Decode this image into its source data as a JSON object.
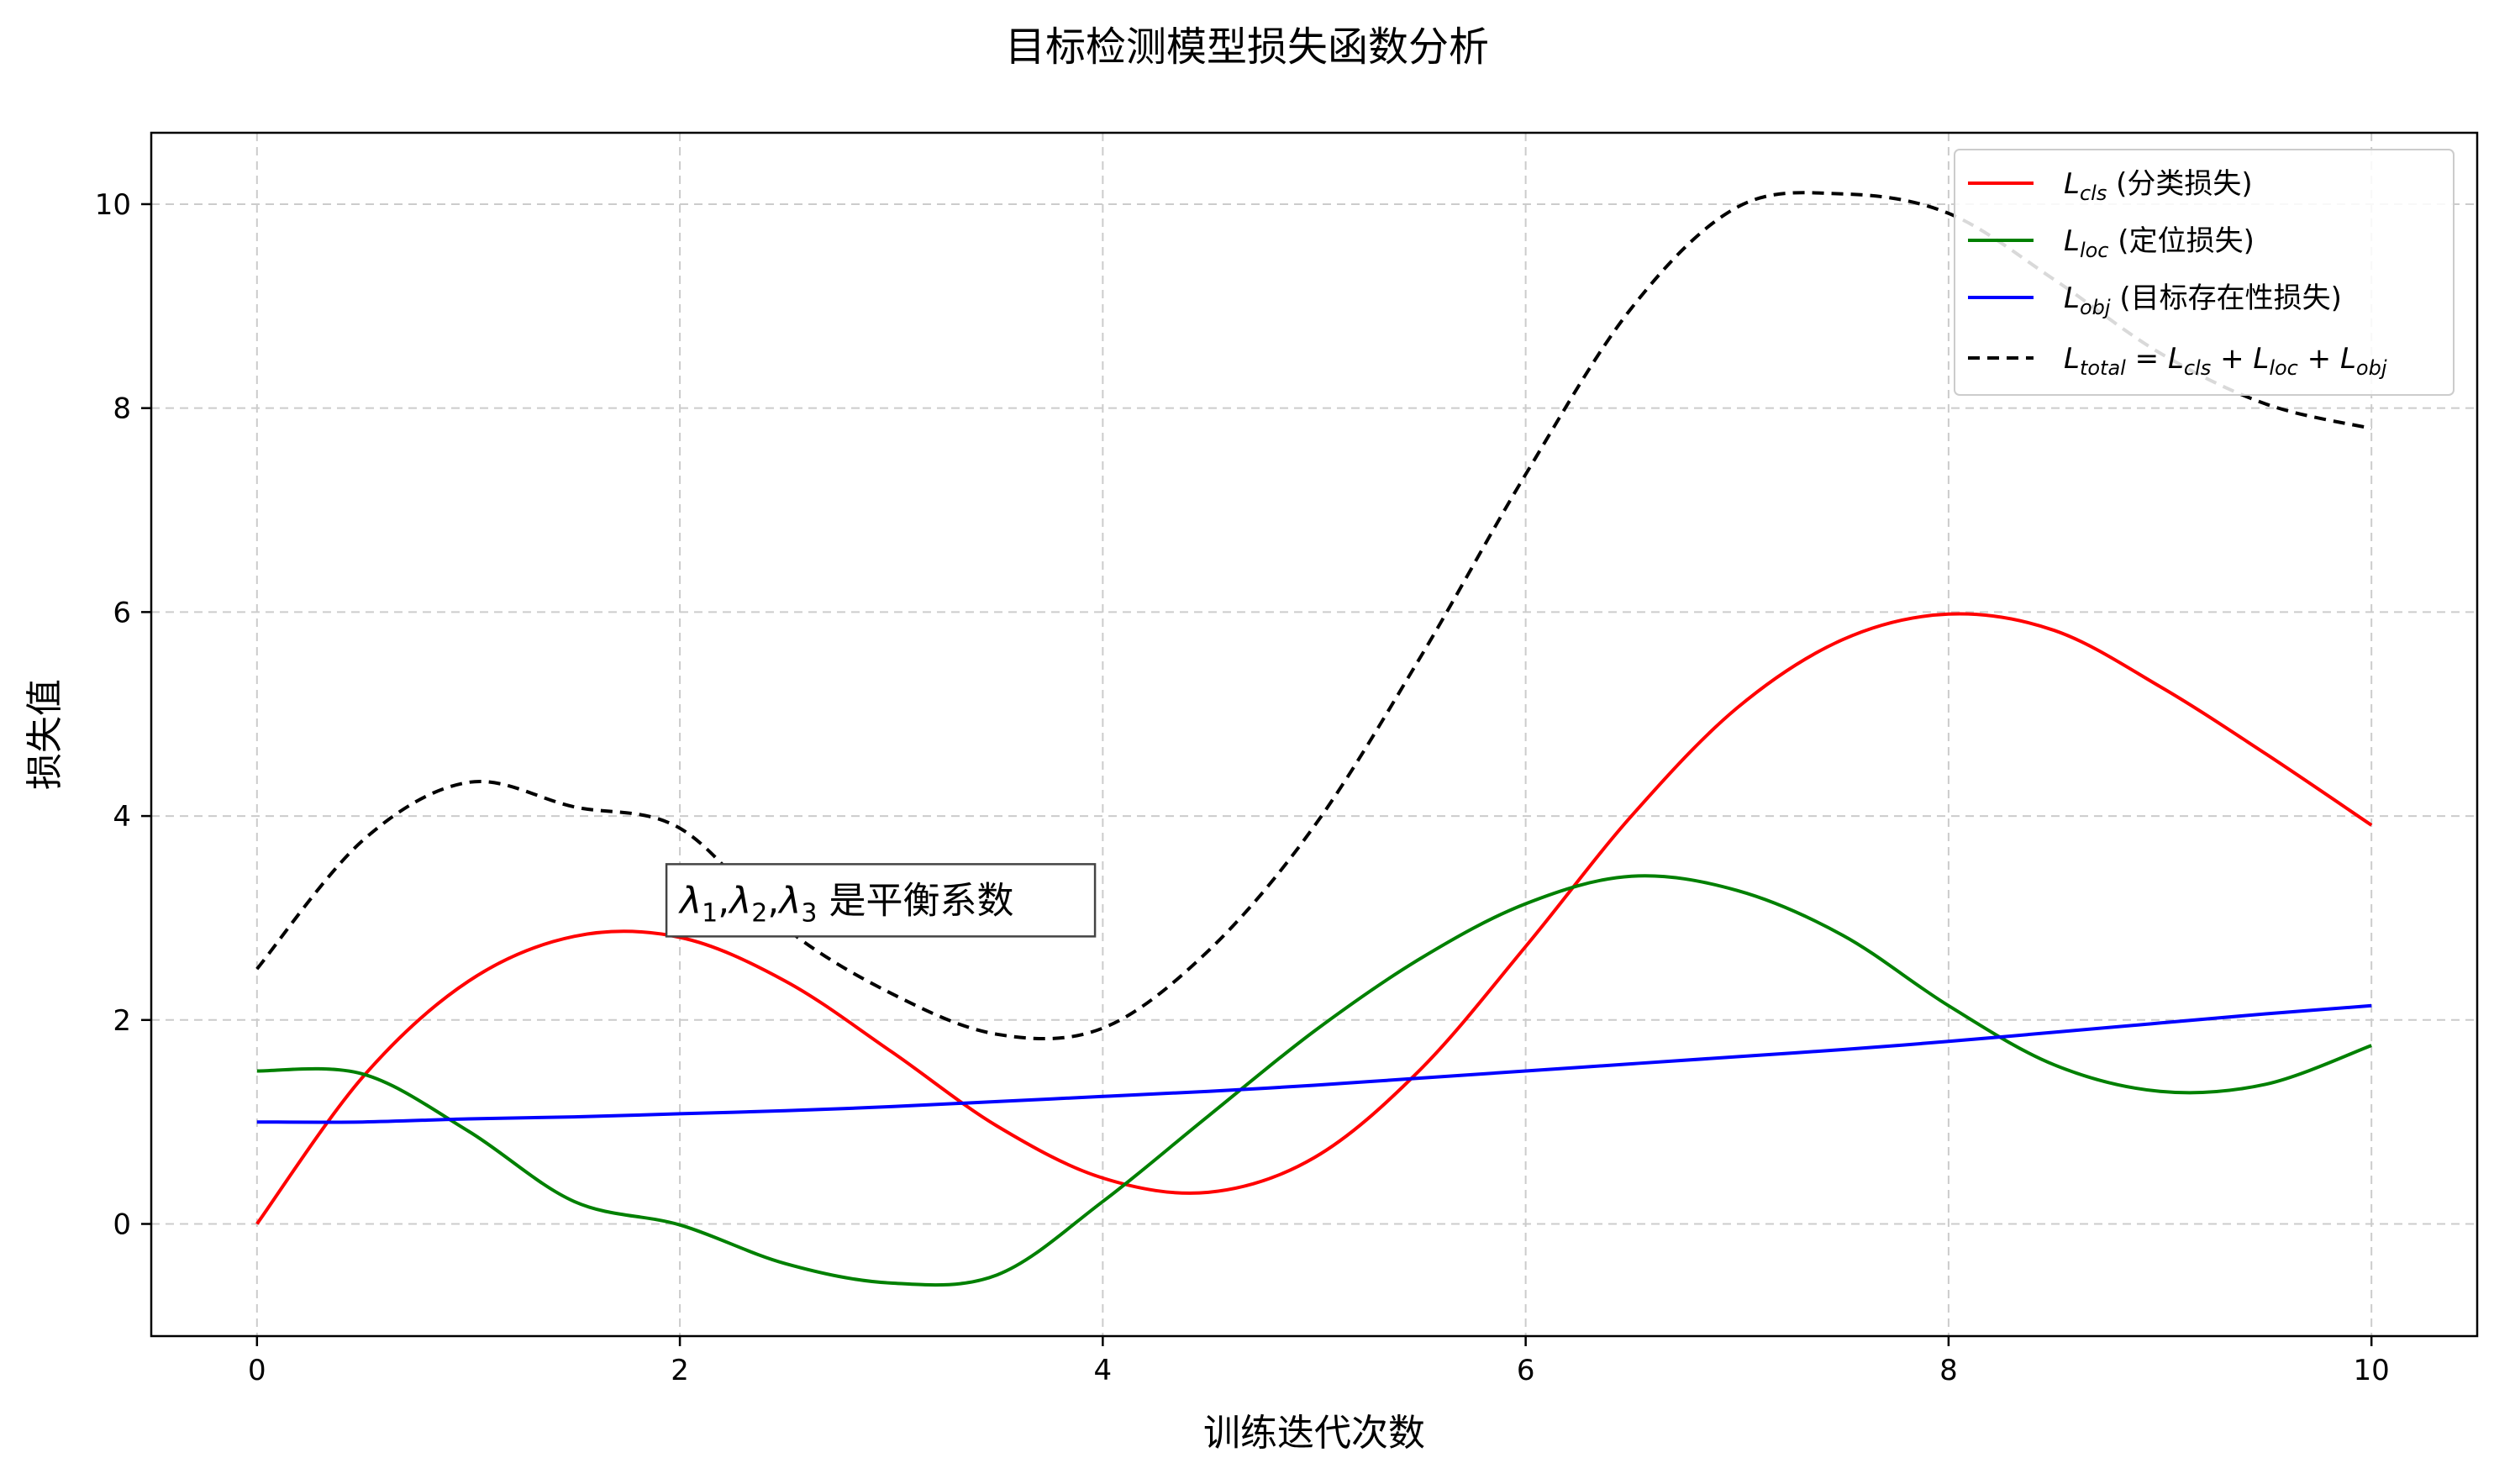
{
  "chart_data": {
    "type": "line",
    "title": "目标检测模型损失函数分析",
    "xlabel": "训练迭代次数",
    "ylabel": "损失值",
    "xlim": [
      -0.5,
      10.5
    ],
    "ylim": [
      -1.1,
      10.7
    ],
    "x_ticks": [
      0,
      2,
      4,
      6,
      8,
      10
    ],
    "y_ticks": [
      0,
      2,
      4,
      6,
      8,
      10
    ],
    "grid": true,
    "legend_position": "top-right",
    "x": [
      0,
      0.5,
      1,
      1.5,
      2,
      2.5,
      3,
      3.5,
      4,
      4.5,
      5,
      5.5,
      6,
      6.5,
      7,
      7.5,
      8,
      8.5,
      9,
      9.5,
      10
    ],
    "series": [
      {
        "name_main": "L",
        "name_sub": "cls",
        "name_suffix": " (分类损失)",
        "color": "#ff0000",
        "dash": "solid",
        "values": [
          0.0,
          1.44,
          2.38,
          2.82,
          2.81,
          2.38,
          1.69,
          0.96,
          0.45,
          0.31,
          0.65,
          1.51,
          2.72,
          4.0,
          5.06,
          5.73,
          5.98,
          5.82,
          5.27,
          4.61,
          3.91
        ]
      },
      {
        "name_main": "L",
        "name_sub": "loc",
        "name_suffix": " (定位损失)",
        "color": "#008000",
        "dash": "solid",
        "values": [
          1.5,
          1.47,
          0.91,
          0.22,
          -0.01,
          -0.39,
          -0.58,
          -0.5,
          0.22,
          1.06,
          1.89,
          2.6,
          3.14,
          3.41,
          3.27,
          2.83,
          2.14,
          1.56,
          1.3,
          1.37,
          1.75
        ]
      },
      {
        "name_main": "L",
        "name_sub": "obj",
        "name_suffix": " (目标存在性损失)",
        "color": "#0000ff",
        "dash": "solid",
        "values": [
          1.0,
          1.0,
          1.03,
          1.05,
          1.08,
          1.11,
          1.15,
          1.2,
          1.25,
          1.3,
          1.36,
          1.43,
          1.5,
          1.57,
          1.64,
          1.71,
          1.79,
          1.88,
          1.97,
          2.06,
          2.14
        ]
      },
      {
        "name_main": "L",
        "name_sub": "total",
        "name_suffix": " = L",
        "color": "#000000",
        "dash": "dashed",
        "values": [
          2.5,
          3.76,
          4.33,
          4.09,
          3.88,
          2.9,
          2.26,
          1.86,
          1.92,
          2.68,
          3.9,
          5.55,
          7.35,
          8.98,
          9.97,
          10.1,
          9.91,
          9.26,
          8.54,
          8.04,
          7.8
        ]
      }
    ],
    "legend_total_label": {
      "main": "L",
      "sub": "total",
      "eq": " = L",
      "t1": "cls",
      "plus1": " + L",
      "t2": "loc",
      "plus2": " + L",
      "t3": "obj"
    },
    "annotation": {
      "lambda": "λ",
      "sub1": "1",
      "sub2": "2",
      "sub3": "3",
      "comma": ",",
      "suffix": " 是平衡系数",
      "x": 2.0,
      "y": 3.05
    }
  }
}
